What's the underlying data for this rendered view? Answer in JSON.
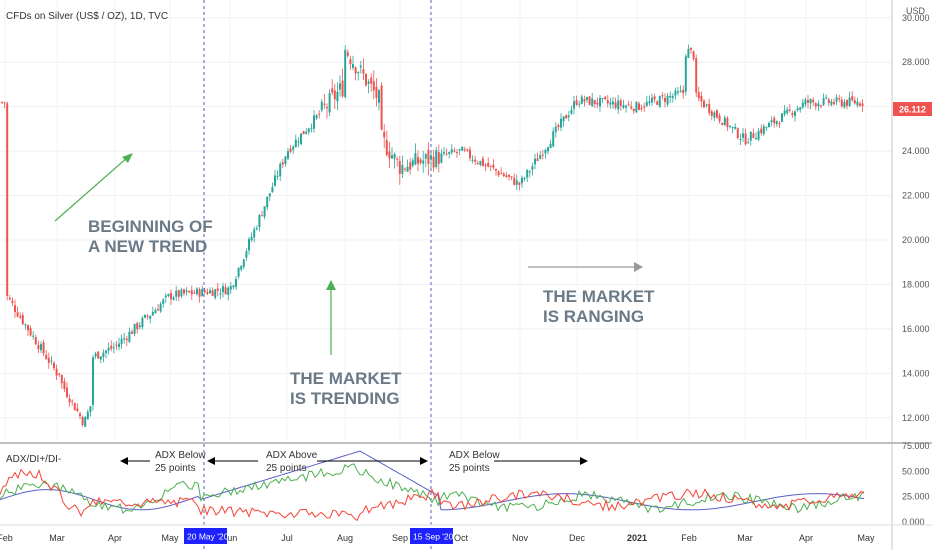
{
  "chart_title": "CFDs on Silver (US$ / OZ), 1D, TVC",
  "currency": "USD",
  "last_price": "26.112",
  "colors": {
    "up": "#26a69a",
    "down": "#ef5350",
    "adx": "#5b5fc7",
    "di_plus": "#4caf50",
    "di_minus": "#f44336",
    "price_tag": "#ef5350",
    "date_tag": "#1e22ff",
    "arrow_green": "#4caf50",
    "arrow_gray": "#999999"
  },
  "indicator_label": "ADX/DI+/DI-",
  "annotations": {
    "beginning_line1": "BEGINNING OF",
    "beginning_line2": "A NEW TREND",
    "trending_line1": "THE MARKET",
    "trending_line2": "IS TRENDING",
    "ranging_line1": "THE MARKET",
    "ranging_line2": "IS RANGING",
    "adx_below_1_line1": "ADX Below",
    "adx_below_1_line2": "25 points",
    "adx_above_line1": "ADX Above",
    "adx_above_line2": "25 points",
    "adx_below_2_line1": "ADX Below",
    "adx_below_2_line2": "25 points"
  },
  "date_markers": [
    "20 May '20",
    "15 Sep '20"
  ],
  "chart_data": [
    {
      "type": "candlestick",
      "title": "CFDs on Silver (US$ / OZ), 1D, TVC",
      "x_tick_labels": [
        "Feb",
        "Mar",
        "Apr",
        "May",
        "Jun",
        "Jul",
        "Aug",
        "Sep",
        "Oct",
        "Nov",
        "Dec",
        "2021",
        "Feb",
        "Mar",
        "Apr",
        "May"
      ],
      "y_tick_labels": [
        "12.000",
        "14.000",
        "16.000",
        "18.000",
        "20.000",
        "22.000",
        "24.000",
        "26.000",
        "28.000",
        "30.000"
      ],
      "ylim": [
        11,
        30.8
      ],
      "close_path_monthly": [
        {
          "month": "Feb 2020",
          "value": 17.6
        },
        {
          "month": "Mar 2020",
          "value": 14.0
        },
        {
          "month": "Apr 2020",
          "value": 15.2
        },
        {
          "month": "May 2020",
          "value": 17.5
        },
        {
          "month": "Jun 2020",
          "value": 17.8
        },
        {
          "month": "Jul 2020",
          "value": 24.0
        },
        {
          "month": "Aug 2020",
          "value": 27.0
        },
        {
          "month": "Sep 2020",
          "value": 23.3
        },
        {
          "month": "Oct 2020",
          "value": 24.0
        },
        {
          "month": "Nov 2020",
          "value": 22.5
        },
        {
          "month": "Dec 2020",
          "value": 26.3
        },
        {
          "month": "Jan 2021",
          "value": 26.0
        },
        {
          "month": "Feb 2021",
          "value": 26.7
        },
        {
          "month": "Mar 2021",
          "value": 24.5
        },
        {
          "month": "Apr 2021",
          "value": 26.2
        }
      ],
      "low": 11.8,
      "high": 30.0,
      "last": 26.112
    },
    {
      "type": "line",
      "title": "ADX/DI+/DI-",
      "y_tick_labels": [
        "0.000",
        "25.000",
        "50.000",
        "75.000"
      ],
      "ylim": [
        0,
        75
      ],
      "series": [
        {
          "name": "ADX",
          "color": "#5b5fc7",
          "peak": 70
        },
        {
          "name": "DI+",
          "color": "#4caf50",
          "peak": 58
        },
        {
          "name": "DI-",
          "color": "#f44336",
          "peak": 55
        }
      ]
    }
  ]
}
